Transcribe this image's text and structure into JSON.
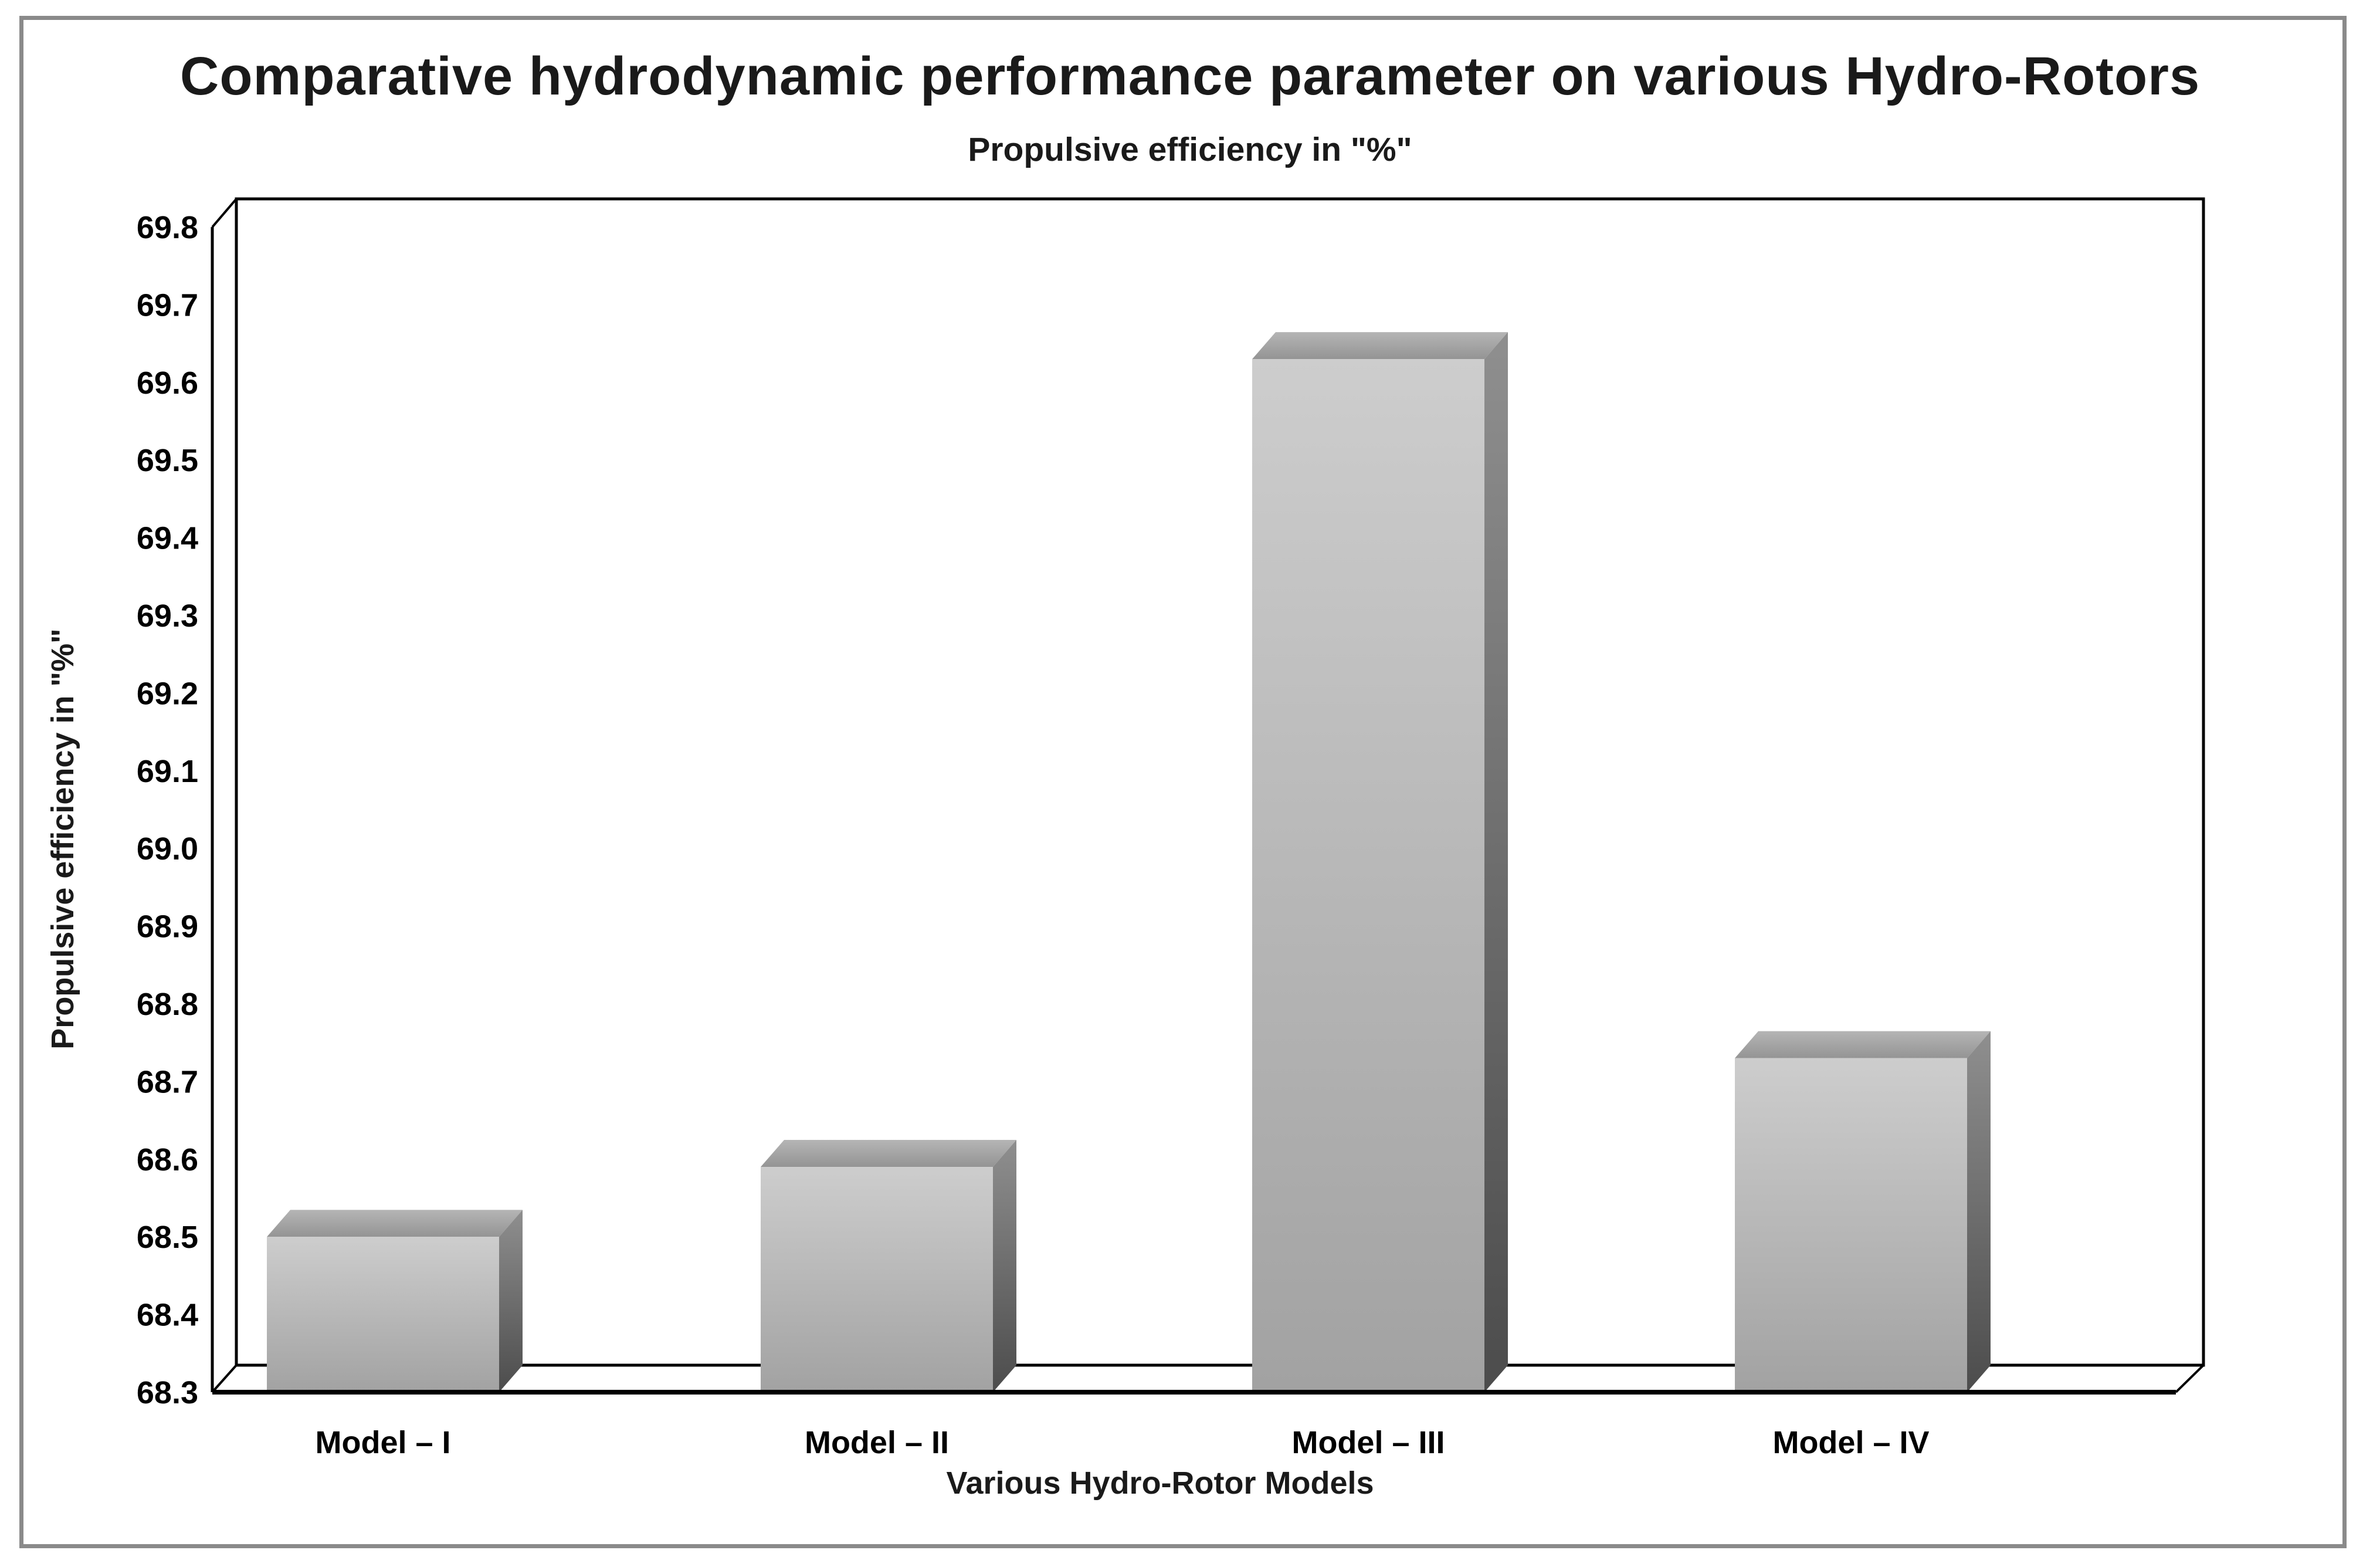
{
  "page": {
    "background": "#ffffff",
    "border_color": "#8a8a8a"
  },
  "header": {
    "title": "Comparative hydrodynamic performance parameter on various Hydro-Rotors",
    "subtitle": "Propulsive efficiency in \"%\""
  },
  "chart_data": {
    "type": "bar",
    "style": "3d-column",
    "title": "Comparative hydrodynamic performance parameter on various Hydro-Rotors",
    "subtitle": "Propulsive efficiency in \"%\"",
    "categories": [
      "Model – I",
      "Model – II",
      "Model – III",
      "Model – IV"
    ],
    "values": [
      68.5,
      68.59,
      69.63,
      68.73
    ],
    "xlabel": "Various Hydro-Rotor Models",
    "ylabel": "Propulsive efficiency in \"%\"",
    "ylim": [
      68.3,
      69.8
    ],
    "ytick_step": 0.1,
    "ytick_labels": [
      "68.3",
      "68.4",
      "68.5",
      "68.6",
      "68.7",
      "68.8",
      "68.9",
      "69.0",
      "69.1",
      "69.2",
      "69.3",
      "69.4",
      "69.5",
      "69.6",
      "69.7",
      "69.8"
    ],
    "grid": false,
    "legend": false,
    "axis_color": "#000000",
    "text_color": "#1a1a1a",
    "bar_front_gradient": [
      "#cdcdcd",
      "#a2a2a2"
    ],
    "bar_top_gradient": [
      "#b5b5b5",
      "#949494"
    ],
    "bar_side_gradient": [
      "#8f8f8f",
      "#4c4c4c"
    ]
  }
}
